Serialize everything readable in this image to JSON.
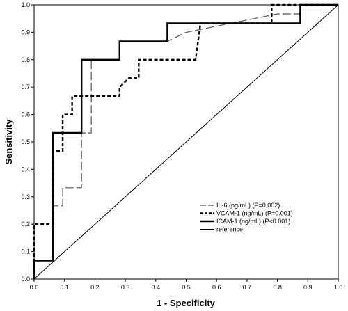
{
  "chart_data": {
    "type": "line",
    "title": "",
    "xlabel": "1 - Specificity",
    "ylabel": "Sensitivity",
    "xlim": [
      0,
      1
    ],
    "ylim": [
      0,
      1
    ],
    "x_ticks": [
      "0.0",
      "0.1",
      "0.2",
      "0.3",
      "0.4",
      "0.5",
      "0.6",
      "0.7",
      "0.8",
      "0.9",
      "1.0"
    ],
    "y_ticks": [
      "0.0",
      "0.1",
      "0.2",
      "0.3",
      "0.4",
      "0.5",
      "0.6",
      "0.7",
      "0.8",
      "0.9",
      "1.0"
    ],
    "grid": false,
    "legend_position": "bottom-right",
    "series": [
      {
        "name": "IL-6 (pg/mL) (P=0.002)",
        "style": "long-dash",
        "color": "#555555",
        "points": [
          [
            0,
            0
          ],
          [
            0,
            0.067
          ],
          [
            0.062,
            0.067
          ],
          [
            0.062,
            0.267
          ],
          [
            0.094,
            0.267
          ],
          [
            0.094,
            0.333
          ],
          [
            0.156,
            0.333
          ],
          [
            0.156,
            0.533
          ],
          [
            0.188,
            0.533
          ],
          [
            0.188,
            0.8
          ],
          [
            0.281,
            0.8
          ],
          [
            0.281,
            0.867
          ],
          [
            0.438,
            0.867
          ],
          [
            0.5,
            0.9
          ],
          [
            0.8,
            0.967
          ],
          [
            0.875,
            0.967
          ],
          [
            0.875,
            1.0
          ],
          [
            1.0,
            1.0
          ]
        ]
      },
      {
        "name": "VCAM-1 (ng/mL) (P=0.001)",
        "style": "short-dash",
        "color": "#000000",
        "points": [
          [
            0,
            0
          ],
          [
            0,
            0.2
          ],
          [
            0.062,
            0.2
          ],
          [
            0.062,
            0.467
          ],
          [
            0.094,
            0.467
          ],
          [
            0.094,
            0.6
          ],
          [
            0.125,
            0.6
          ],
          [
            0.125,
            0.667
          ],
          [
            0.281,
            0.667
          ],
          [
            0.281,
            0.7
          ],
          [
            0.312,
            0.733
          ],
          [
            0.344,
            0.733
          ],
          [
            0.344,
            0.8
          ],
          [
            0.531,
            0.8
          ],
          [
            0.547,
            0.933
          ],
          [
            0.781,
            0.933
          ],
          [
            0.781,
            1.0
          ],
          [
            1.0,
            1.0
          ]
        ]
      },
      {
        "name": "ICAM-1 (ng/mL) (P<0.001)",
        "style": "solid-thick",
        "color": "#000000",
        "points": [
          [
            0,
            0
          ],
          [
            0,
            0.067
          ],
          [
            0.062,
            0.067
          ],
          [
            0.062,
            0.533
          ],
          [
            0.156,
            0.533
          ],
          [
            0.156,
            0.8
          ],
          [
            0.281,
            0.8
          ],
          [
            0.281,
            0.867
          ],
          [
            0.438,
            0.867
          ],
          [
            0.438,
            0.933
          ],
          [
            0.875,
            0.933
          ],
          [
            0.875,
            1.0
          ],
          [
            1.0,
            1.0
          ]
        ]
      },
      {
        "name": "reference",
        "style": "solid-thin",
        "color": "#000000",
        "points": [
          [
            0,
            0
          ],
          [
            1,
            1
          ]
        ]
      }
    ]
  }
}
